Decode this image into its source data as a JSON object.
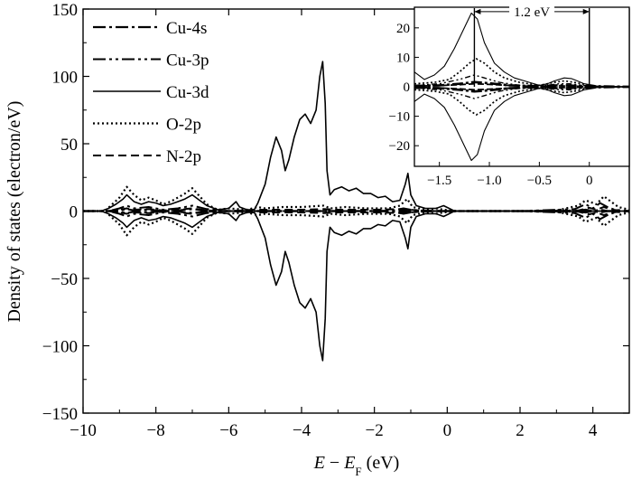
{
  "chart_data": {
    "type": "line",
    "xlabel": {
      "italic1": "E",
      "sep": " − ",
      "italic2": "E",
      "sub": "F",
      "unit": " (eV)"
    },
    "ylabel": "Density of states (electron/eV)",
    "xlim": [
      -10,
      5
    ],
    "ylim": [
      -150,
      150
    ],
    "xticks": [
      -10,
      -8,
      -6,
      -4,
      -2,
      0,
      2,
      4
    ],
    "xtick_labels": [
      "−10",
      "−8",
      "−6",
      "−4",
      "−2",
      "0",
      "2",
      "4"
    ],
    "yticks": [
      -150,
      -100,
      -50,
      0,
      50,
      100,
      150
    ],
    "ytick_labels": [
      "−150",
      "−100",
      "−50",
      "0",
      "50",
      "100",
      "150"
    ],
    "legend_position": "top-left",
    "series": [
      {
        "name": "Cu-4s",
        "dash": "14,4,3,4",
        "width": 2.2,
        "points": [
          [
            -10,
            0
          ],
          [
            -9.3,
            0
          ],
          [
            -9,
            -0.5
          ],
          [
            -8.8,
            -1.5
          ],
          [
            -8.6,
            -0.5
          ],
          [
            -8.2,
            -1
          ],
          [
            -7.8,
            0
          ],
          [
            -7.4,
            -0.5
          ],
          [
            -7,
            -1.5
          ],
          [
            -6.6,
            -0.3
          ],
          [
            -6,
            0
          ],
          [
            -5,
            0
          ],
          [
            -4,
            0
          ],
          [
            -3,
            0
          ],
          [
            -2,
            0
          ],
          [
            -1.2,
            -0.5
          ],
          [
            -1,
            0
          ],
          [
            0,
            0
          ],
          [
            2,
            0
          ],
          [
            3.5,
            0
          ],
          [
            3.8,
            -1
          ],
          [
            4,
            0
          ],
          [
            4.2,
            -1
          ],
          [
            4.4,
            0
          ],
          [
            5,
            0
          ]
        ]
      },
      {
        "name": "Cu-3p",
        "dash": "14,4,3,4,3,4",
        "width": 2,
        "points": [
          [
            -10,
            0
          ],
          [
            -9.3,
            0
          ],
          [
            -9,
            -2
          ],
          [
            -8.8,
            -4
          ],
          [
            -8.6,
            -2
          ],
          [
            -8.2,
            -3
          ],
          [
            -7.8,
            -1
          ],
          [
            -7.4,
            -2
          ],
          [
            -7,
            -4
          ],
          [
            -6.6,
            -1.5
          ],
          [
            -6,
            0
          ],
          [
            -5,
            0
          ],
          [
            -4,
            0
          ],
          [
            -3,
            0
          ],
          [
            -2,
            0
          ],
          [
            -1.5,
            -0.5
          ],
          [
            -1.2,
            -2
          ],
          [
            -1,
            -1
          ],
          [
            -0.5,
            0
          ],
          [
            0,
            0
          ],
          [
            2,
            0
          ],
          [
            3.5,
            -1.5
          ],
          [
            3.8,
            -5
          ],
          [
            4,
            -2
          ],
          [
            4.2,
            -6
          ],
          [
            4.4,
            -3
          ],
          [
            4.6,
            -1
          ],
          [
            5,
            0
          ]
        ]
      },
      {
        "name": "Cu-3d",
        "dash": "",
        "width": 1.6,
        "points": [
          [
            -10,
            0
          ],
          [
            -9.5,
            0
          ],
          [
            -9.3,
            -2
          ],
          [
            -9.1,
            -5
          ],
          [
            -8.9,
            -9
          ],
          [
            -8.8,
            -12
          ],
          [
            -8.6,
            -7
          ],
          [
            -8.4,
            -5
          ],
          [
            -8.2,
            -7
          ],
          [
            -8,
            -6
          ],
          [
            -7.8,
            -4
          ],
          [
            -7.6,
            -5
          ],
          [
            -7.4,
            -7
          ],
          [
            -7.2,
            -9
          ],
          [
            -7,
            -12
          ],
          [
            -6.8,
            -8
          ],
          [
            -6.6,
            -4
          ],
          [
            -6.3,
            -1
          ],
          [
            -6,
            -2
          ],
          [
            -5.8,
            -7
          ],
          [
            -5.7,
            -3
          ],
          [
            -5.5,
            -1
          ],
          [
            -5.3,
            -1
          ],
          [
            -5.2,
            -6
          ],
          [
            -5,
            -20
          ],
          [
            -4.85,
            -40
          ],
          [
            -4.7,
            -55
          ],
          [
            -4.55,
            -45
          ],
          [
            -4.45,
            -30
          ],
          [
            -4.35,
            -38
          ],
          [
            -4.2,
            -55
          ],
          [
            -4.05,
            -68
          ],
          [
            -3.9,
            -72
          ],
          [
            -3.75,
            -65
          ],
          [
            -3.6,
            -75
          ],
          [
            -3.5,
            -100
          ],
          [
            -3.42,
            -111
          ],
          [
            -3.35,
            -80
          ],
          [
            -3.3,
            -30
          ],
          [
            -3.22,
            -12
          ],
          [
            -3.1,
            -16
          ],
          [
            -2.9,
            -18
          ],
          [
            -2.7,
            -15
          ],
          [
            -2.5,
            -17
          ],
          [
            -2.3,
            -13
          ],
          [
            -2.1,
            -13
          ],
          [
            -1.9,
            -10
          ],
          [
            -1.7,
            -11
          ],
          [
            -1.5,
            -7
          ],
          [
            -1.3,
            -8
          ],
          [
            -1.15,
            -20
          ],
          [
            -1.08,
            -28
          ],
          [
            -1,
            -12
          ],
          [
            -0.85,
            -4
          ],
          [
            -0.6,
            -2
          ],
          [
            -0.3,
            -2
          ],
          [
            -0.1,
            -4
          ],
          [
            0.05,
            -2
          ],
          [
            0.2,
            0
          ],
          [
            2,
            0
          ],
          [
            5,
            0
          ]
        ]
      },
      {
        "name": "O-2p",
        "dash": "2,3",
        "width": 2.2,
        "points": [
          [
            -10,
            0
          ],
          [
            -9.4,
            0
          ],
          [
            -9.2,
            -5
          ],
          [
            -9,
            -10
          ],
          [
            -8.8,
            -18
          ],
          [
            -8.6,
            -12
          ],
          [
            -8.4,
            -8
          ],
          [
            -8.2,
            -10
          ],
          [
            -8,
            -8
          ],
          [
            -7.8,
            -5
          ],
          [
            -7.6,
            -7
          ],
          [
            -7.4,
            -10
          ],
          [
            -7.2,
            -13
          ],
          [
            -7,
            -17
          ],
          [
            -6.8,
            -11
          ],
          [
            -6.6,
            -5
          ],
          [
            -6.3,
            -1
          ],
          [
            -6,
            -2
          ],
          [
            -5.5,
            -1
          ],
          [
            -5.2,
            -3
          ],
          [
            -5,
            -2
          ],
          [
            -4.5,
            -3
          ],
          [
            -4,
            -3
          ],
          [
            -3.4,
            -4
          ],
          [
            -3.2,
            -2
          ],
          [
            -2.8,
            -3
          ],
          [
            -2.2,
            -2
          ],
          [
            -1.6,
            -2
          ],
          [
            -1.3,
            -4
          ],
          [
            -1.1,
            -9
          ],
          [
            -0.95,
            -3
          ],
          [
            -0.6,
            -1
          ],
          [
            -0.3,
            -2
          ],
          [
            -0.1,
            -1
          ],
          [
            0.3,
            0
          ],
          [
            2,
            0
          ],
          [
            3,
            -0.5
          ],
          [
            3.6,
            -4
          ],
          [
            3.8,
            -8
          ],
          [
            4.1,
            -5
          ],
          [
            4.3,
            -11
          ],
          [
            4.5,
            -7
          ],
          [
            4.7,
            -3
          ],
          [
            5,
            -1
          ]
        ]
      },
      {
        "name": "N-2p",
        "dash": "9,5",
        "width": 2,
        "points": [
          [
            -10,
            0
          ],
          [
            -9.3,
            0
          ],
          [
            -9,
            -1
          ],
          [
            -8.8,
            -2
          ],
          [
            -8.6,
            -1
          ],
          [
            -8.2,
            -1.5
          ],
          [
            -7.8,
            -0.5
          ],
          [
            -7.4,
            -1
          ],
          [
            -7,
            -2
          ],
          [
            -6.6,
            -0.5
          ],
          [
            -6,
            0
          ],
          [
            -5.2,
            -1
          ],
          [
            -4.6,
            -1
          ],
          [
            -4,
            -1
          ],
          [
            -3.4,
            -1.5
          ],
          [
            -3,
            -1
          ],
          [
            -2,
            -1
          ],
          [
            -1.2,
            -1.5
          ],
          [
            -0.8,
            -0.5
          ],
          [
            0,
            0
          ],
          [
            2,
            0
          ],
          [
            3.6,
            -0.5
          ],
          [
            3.9,
            -2.5
          ],
          [
            4.1,
            -1
          ],
          [
            4.3,
            -3
          ],
          [
            4.5,
            -1
          ],
          [
            5,
            0
          ]
        ]
      }
    ],
    "inset": {
      "xlim": [
        -1.75,
        0.4
      ],
      "ylim": [
        -27,
        27
      ],
      "xticks": [
        -1.5,
        -1.0,
        -0.5,
        0
      ],
      "xtick_labels": [
        "−1.5",
        "−1.0",
        "−0.5",
        "0"
      ],
      "yticks": [
        -20,
        -10,
        0,
        10,
        20
      ],
      "ytick_labels": [
        "−20",
        "−10",
        "0",
        "10",
        "20"
      ],
      "annotation": {
        "text": "1.2 eV",
        "x1": -1.15,
        "x2": 0.0,
        "y": 25.5
      },
      "series": [
        {
          "name": "Cu-3d",
          "dash": "",
          "width": 1.1,
          "points": [
            [
              -1.75,
              5
            ],
            [
              -1.65,
              2.5
            ],
            [
              -1.55,
              4
            ],
            [
              -1.45,
              7
            ],
            [
              -1.35,
              13
            ],
            [
              -1.25,
              20
            ],
            [
              -1.18,
              25
            ],
            [
              -1.12,
              23
            ],
            [
              -1.05,
              15
            ],
            [
              -0.95,
              8
            ],
            [
              -0.85,
              5
            ],
            [
              -0.75,
              3
            ],
            [
              -0.6,
              1.5
            ],
            [
              -0.5,
              0.5
            ],
            [
              -0.42,
              1
            ],
            [
              -0.35,
              2
            ],
            [
              -0.25,
              3
            ],
            [
              -0.18,
              2.8
            ],
            [
              -0.12,
              2
            ],
            [
              -0.05,
              1
            ],
            [
              0.05,
              0.5
            ],
            [
              0.1,
              0
            ],
            [
              0.4,
              0
            ]
          ]
        },
        {
          "name": "O-2p",
          "dash": "2,2.5",
          "width": 1.7,
          "points": [
            [
              -1.75,
              1
            ],
            [
              -1.55,
              1.5
            ],
            [
              -1.4,
              2.5
            ],
            [
              -1.3,
              5
            ],
            [
              -1.2,
              8
            ],
            [
              -1.13,
              9.5
            ],
            [
              -1.05,
              8
            ],
            [
              -0.95,
              5
            ],
            [
              -0.85,
              3
            ],
            [
              -0.7,
              1.5
            ],
            [
              -0.5,
              0.5
            ],
            [
              -0.35,
              1.5
            ],
            [
              -0.25,
              2
            ],
            [
              -0.15,
              1.5
            ],
            [
              0,
              0.5
            ],
            [
              0.1,
              0
            ],
            [
              0.4,
              0
            ]
          ]
        },
        {
          "name": "Cu-3p",
          "dash": "6,3,2,3,2,3",
          "width": 1.4,
          "points": [
            [
              -1.75,
              0.5
            ],
            [
              -1.5,
              1
            ],
            [
              -1.3,
              2.5
            ],
            [
              -1.15,
              4
            ],
            [
              -1.05,
              3
            ],
            [
              -0.9,
              1.5
            ],
            [
              -0.7,
              0.5
            ],
            [
              -0.5,
              0.2
            ],
            [
              -0.3,
              1
            ],
            [
              -0.2,
              1
            ],
            [
              0,
              0.2
            ],
            [
              0.4,
              0
            ]
          ]
        },
        {
          "name": "Cu-4s",
          "dash": "12,3,3,3",
          "width": 2.6,
          "points": [
            [
              -1.75,
              0.3
            ],
            [
              -1.5,
              0.5
            ],
            [
              -1.3,
              1
            ],
            [
              -1.15,
              1.6
            ],
            [
              -1.0,
              1.2
            ],
            [
              -0.8,
              0.5
            ],
            [
              -0.5,
              0.2
            ],
            [
              -0.3,
              0.5
            ],
            [
              0,
              0.2
            ],
            [
              0.4,
              0
            ]
          ]
        },
        {
          "name": "N-2p",
          "dash": "7,3",
          "width": 1.8,
          "points": [
            [
              -1.75,
              0.2
            ],
            [
              -1.5,
              0.4
            ],
            [
              -1.3,
              0.7
            ],
            [
              -1.15,
              1
            ],
            [
              -1,
              0.8
            ],
            [
              -0.7,
              0.3
            ],
            [
              -0.5,
              0.1
            ],
            [
              -0.3,
              0.3
            ],
            [
              0,
              0.1
            ],
            [
              0.4,
              0
            ]
          ]
        }
      ]
    }
  }
}
